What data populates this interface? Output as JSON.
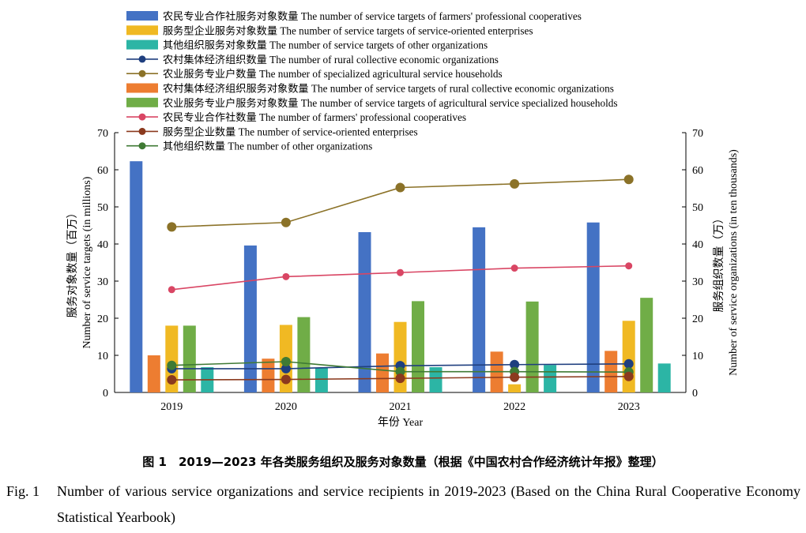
{
  "chart_data": {
    "type": "bar+line",
    "title": "",
    "categories": [
      "2019",
      "2020",
      "2021",
      "2022",
      "2023"
    ],
    "xlabel": "年份 Year",
    "ylabel_left_cn": "服务对象数量（百万）",
    "ylabel_left_en": "Number of service targets (in millions)",
    "ylabel_right_cn": "服务组织数量（万）",
    "ylabel_right_en": "Number of service organizations (in ten thousands)",
    "ylim_left": [
      0,
      70
    ],
    "ylim_right": [
      0,
      70
    ],
    "yticks": [
      "0",
      "10",
      "20",
      "30",
      "40",
      "50",
      "60",
      "70"
    ],
    "grid": false,
    "legend_position": "top-left",
    "bar_series": [
      {
        "name": "农民专业合作社服务对象数量 The number of service targets of farmers' professional cooperatives",
        "color": "#4472c4",
        "values": [
          62.3,
          39.6,
          43.2,
          44.5,
          45.8
        ]
      },
      {
        "name": "农村集体经济组织服务对象数量 The number of service targets of rural collective economic organizations",
        "color": "#ed7d31",
        "values": [
          10.0,
          9.1,
          10.5,
          11.0,
          11.2
        ]
      },
      {
        "name": "服务型企业服务对象数量 The number of service targets of service-oriented enterprises",
        "color": "#f0b923",
        "values": [
          18.0,
          18.2,
          19.0,
          2.2,
          19.3
        ]
      },
      {
        "name": "农业服务专业户服务对象数量 The number of service targets of agricultural service specialized households",
        "color": "#70ad47",
        "values": [
          18.0,
          20.3,
          24.6,
          24.5,
          25.5
        ]
      },
      {
        "name": "其他组织服务对象数量 The number of service targets of other organizations",
        "color": "#2cb5a5",
        "values": [
          6.8,
          6.6,
          6.8,
          7.4,
          7.8
        ]
      }
    ],
    "line_series": [
      {
        "name": "农民专业合作社数量 The number of farmers' professional cooperatives",
        "color": "#d94664",
        "values": [
          27.7,
          31.2,
          32.3,
          33.5,
          34.1
        ]
      },
      {
        "name": "农业服务专业户数量 The number of specialized agricultural service households",
        "color": "#8b7228",
        "values": [
          44.6,
          45.8,
          55.2,
          56.2,
          57.4
        ]
      },
      {
        "name": "农村集体经济组织数量 The number of rural collective economic organizations",
        "color": "#1f3f7f",
        "values": [
          6.4,
          6.4,
          7.2,
          7.5,
          7.7
        ]
      },
      {
        "name": "其他组织数量 The number of other organizations",
        "color": "#3f7a34",
        "values": [
          7.3,
          8.3,
          5.6,
          5.6,
          5.5
        ]
      },
      {
        "name": "服务型企业数量 The number of service-oriented enterprises",
        "color": "#8b3a1e",
        "values": [
          3.4,
          3.5,
          3.8,
          4.1,
          4.3
        ]
      }
    ],
    "legend": [
      {
        "label": "农民专业合作社服务对象数量 The number of service targets of farmers' professional cooperatives",
        "kind": "bar",
        "color": "#4472c4"
      },
      {
        "label": "服务型企业服务对象数量 The number of service targets of service-oriented enterprises",
        "kind": "bar",
        "color": "#f0b923"
      },
      {
        "label": "其他组织服务对象数量 The number of service targets of other organizations",
        "kind": "bar",
        "color": "#2cb5a5"
      },
      {
        "label": "农村集体经济组织数量 The number of rural collective economic organizations",
        "kind": "line",
        "color": "#1f3f7f"
      },
      {
        "label": "农业服务专业户数量 The number of specialized agricultural service households",
        "kind": "line",
        "color": "#8b7228"
      },
      {
        "label": "农村集体经济组织服务对象数量 The number of service targets of rural collective economic organizations",
        "kind": "bar",
        "color": "#ed7d31"
      },
      {
        "label": "农业服务专业户服务对象数量 The number of service targets of agricultural service specialized households",
        "kind": "bar",
        "color": "#70ad47"
      },
      {
        "label": "农民专业合作社数量 The number of farmers' professional cooperatives",
        "kind": "line",
        "color": "#d94664"
      },
      {
        "label": "服务型企业数量 The number of service-oriented enterprises",
        "kind": "line",
        "color": "#8b3a1e"
      },
      {
        "label": "其他组织数量 The number of other organizations",
        "kind": "line",
        "color": "#3f7a34"
      }
    ]
  },
  "caption": {
    "cn": "图 1　2019—2023 年各类服务组织及服务对象数量（根据《中国农村合作经济统计年报》整理）",
    "en_label": "Fig. 1",
    "en_text": "Number of various service organizations and service recipients in 2019-2023 (Based on the China Rural Cooperative Economy Statistical Yearbook)"
  }
}
